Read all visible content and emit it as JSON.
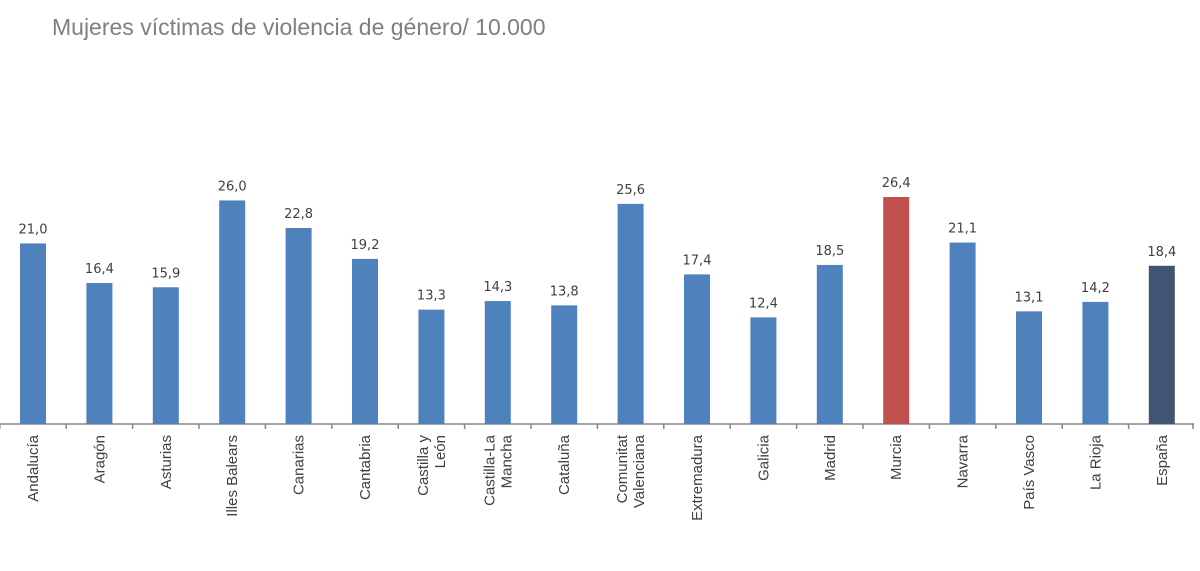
{
  "chart_data": {
    "type": "bar",
    "title": "Mujeres víctimas de violencia de género/ 10.000",
    "xlabel": "",
    "ylabel": "",
    "ylim": [
      0,
      27
    ],
    "grid": false,
    "legend": "none",
    "categories": [
      "Andalucía",
      "Aragón",
      "Asturias",
      "Illes Balears",
      "Canarias",
      "Cantabria",
      "Castilla y\nLeón",
      "Castilla-La\nMancha",
      "Cataluña",
      "Comunitat\nValenciana",
      "Extremadura",
      "Galicia",
      "Madrid",
      "Murcia",
      "Navarra",
      "País Vasco",
      "La Rioja",
      "España"
    ],
    "values": [
      21.0,
      16.4,
      15.9,
      26.0,
      22.8,
      19.2,
      13.3,
      14.3,
      13.8,
      25.6,
      17.4,
      12.4,
      18.5,
      26.4,
      21.1,
      13.1,
      14.2,
      18.4
    ],
    "data_labels": [
      "21,0",
      "16,4",
      "15,9",
      "26,0",
      "22,8",
      "19,2",
      "13,3",
      "14,3",
      "13,8",
      "25,6",
      "17,4",
      "12,4",
      "18,5",
      "26,4",
      "21,1",
      "13,1",
      "14,2",
      "18,4"
    ],
    "colors": {
      "default": "#4F81BD",
      "highlight": "#C0504D",
      "total": "#3F5573"
    },
    "highlight_category": "Murcia",
    "total_category": "España"
  }
}
